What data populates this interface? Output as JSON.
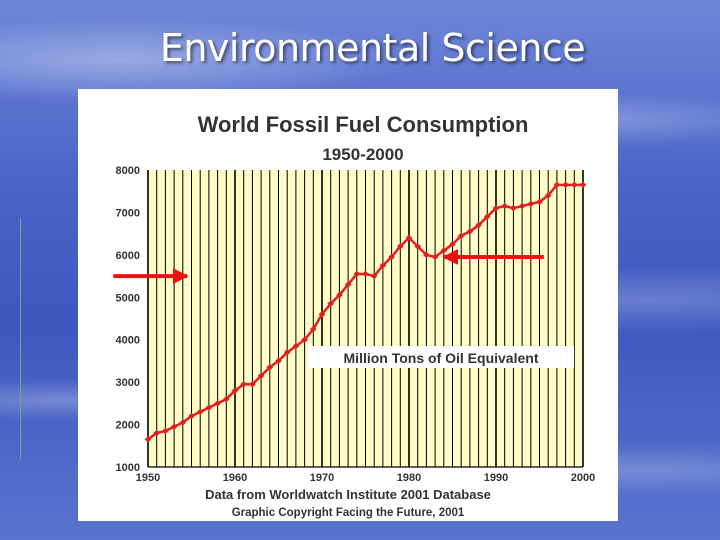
{
  "slide": {
    "title": "Environmental Science"
  },
  "colors": {
    "plot_background": "#fffcc8",
    "grid_line": "#000000",
    "series": "#e02020",
    "arrow": "#ee1111"
  },
  "chart_data": {
    "type": "line",
    "title": "World Fossil Fuel Consumption",
    "subtitle": "1950-2000",
    "annotation": "Million Tons of Oil Equivalent",
    "source_line_1": "Data from Worldwatch Institute 2001 Database",
    "source_line_2": "Graphic Copyright Facing the Future, 2001",
    "xlim": [
      1950,
      2000
    ],
    "ylim": [
      1000,
      8000
    ],
    "xticks": [
      1950,
      1960,
      1970,
      1980,
      1990,
      2000
    ],
    "yticks": [
      1000,
      2000,
      3000,
      4000,
      5000,
      6000,
      7000,
      8000
    ],
    "grid": "vertical",
    "series": [
      {
        "x": [
          1950,
          1951,
          1952,
          1953,
          1954,
          1955,
          1956,
          1957,
          1958,
          1959,
          1960,
          1961,
          1962,
          1963,
          1964,
          1965,
          1966,
          1967,
          1968,
          1969,
          1970,
          1971,
          1972,
          1973,
          1974,
          1975,
          1976,
          1977,
          1978,
          1979,
          1980,
          1981,
          1982,
          1983,
          1984,
          1985,
          1986,
          1987,
          1988,
          1989,
          1990,
          1991,
          1992,
          1993,
          1994,
          1995,
          1996,
          1997,
          1998,
          1999,
          2000
        ],
        "values": [
          1650,
          1800,
          1850,
          1950,
          2050,
          2200,
          2300,
          2400,
          2500,
          2600,
          2800,
          2950,
          2950,
          3150,
          3350,
          3500,
          3700,
          3850,
          4000,
          4250,
          4600,
          4850,
          5050,
          5300,
          5550,
          5550,
          5500,
          5750,
          5950,
          6200,
          6400,
          6200,
          6000,
          5950,
          6100,
          6250,
          6450,
          6550,
          6700,
          6900,
          7100,
          7150,
          7100,
          7150,
          7200,
          7250,
          7400,
          7650,
          7650,
          7650,
          7650
        ]
      }
    ],
    "arrows": [
      {
        "x_from": 1946,
        "x_to": 1954.5,
        "y": 5500,
        "direction": "right"
      },
      {
        "x_from": 1995.5,
        "x_to": 1984,
        "y": 5950,
        "direction": "left"
      }
    ]
  }
}
